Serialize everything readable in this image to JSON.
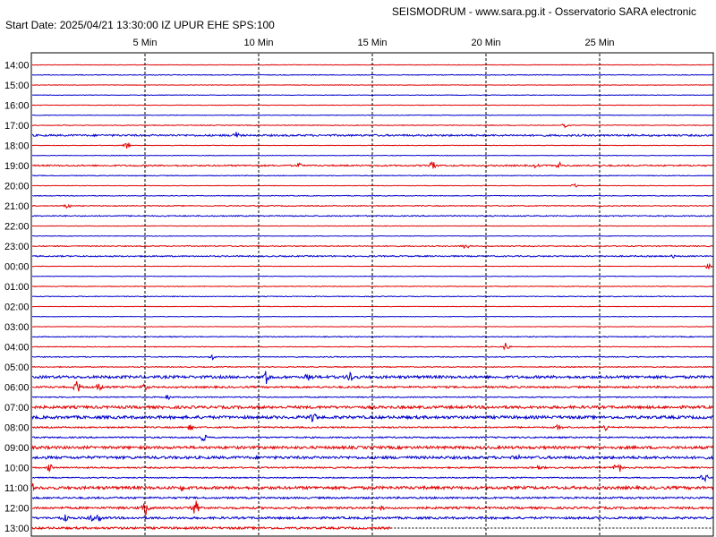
{
  "header": {
    "title": "SEISMODRUM - www.sara.pg.it - Osservatorio SARA electronic",
    "info": "Start Date: 2025/04/21 13:30:00 IZ UPUR   EHE  SPS:100"
  },
  "colors": {
    "trace_a": "#e00000",
    "trace_b": "#0000cc",
    "grid": "#000000",
    "frame": "#000000"
  },
  "chart_data": {
    "type": "line",
    "title": "SEISMODRUM - www.sara.pg.it - Osservatorio SARA electronic",
    "subtitle": "Start Date: 2025/04/21 13:30:00 IZ UPUR   EHE  SPS:100",
    "x_unit": "minutes",
    "xlim": [
      0,
      30
    ],
    "x_ticks": [
      {
        "value": 5,
        "label": "5 Min"
      },
      {
        "value": 10,
        "label": "10 Min"
      },
      {
        "value": 15,
        "label": "15 Min"
      },
      {
        "value": 20,
        "label": "20 Min"
      },
      {
        "value": 25,
        "label": "25 Min"
      }
    ],
    "row_minutes": 30,
    "grid": "dashed vertical",
    "row_labels": [
      "14:00",
      "15:00",
      "16:00",
      "17:00",
      "18:00",
      "19:00",
      "20:00",
      "21:00",
      "22:00",
      "23:00",
      "00:00",
      "01:00",
      "02:00",
      "03:00",
      "04:00",
      "05:00",
      "06:00",
      "07:00",
      "08:00",
      "09:00",
      "10:00",
      "11:00",
      "12:00",
      "13:00"
    ],
    "rows": [
      {
        "label": "14:00",
        "noise_a": 0.3,
        "noise_b": 0.4,
        "events_a": [],
        "events_b": []
      },
      {
        "label": "15:00",
        "noise_a": 0.3,
        "noise_b": 0.3,
        "events_a": [],
        "events_b": []
      },
      {
        "label": "16:00",
        "noise_a": 0.3,
        "noise_b": 0.3,
        "events_a": [],
        "events_b": []
      },
      {
        "label": "17:00",
        "noise_a": 0.4,
        "noise_b": 1.0,
        "events_a": [
          {
            "t": 23.5,
            "amp": 2.5
          }
        ],
        "events_b": [
          {
            "t": 9.0,
            "amp": 3.5
          }
        ]
      },
      {
        "label": "18:00",
        "noise_a": 0.3,
        "noise_b": 0.3,
        "events_a": [
          {
            "t": 4.2,
            "amp": 3
          }
        ],
        "events_b": []
      },
      {
        "label": "19:00",
        "noise_a": 0.8,
        "noise_b": 0.4,
        "events_a": [
          {
            "t": 11.8,
            "amp": 2.5
          },
          {
            "t": 17.7,
            "amp": 5
          },
          {
            "t": 22.2,
            "amp": 2.5
          },
          {
            "t": 23.2,
            "amp": 3
          }
        ],
        "events_b": []
      },
      {
        "label": "20:00",
        "noise_a": 0.3,
        "noise_b": 0.4,
        "events_a": [
          {
            "t": 23.9,
            "amp": 2
          }
        ],
        "events_b": []
      },
      {
        "label": "21:00",
        "noise_a": 0.5,
        "noise_b": 0.6,
        "events_a": [
          {
            "t": 1.6,
            "amp": 2.5
          }
        ],
        "events_b": []
      },
      {
        "label": "22:00",
        "noise_a": 0.3,
        "noise_b": 0.3,
        "events_a": [],
        "events_b": []
      },
      {
        "label": "23:00",
        "noise_a": 0.6,
        "noise_b": 0.7,
        "events_a": [
          {
            "t": 19.1,
            "amp": 3
          }
        ],
        "events_b": [
          {
            "t": 28.3,
            "amp": 2
          }
        ]
      },
      {
        "label": "00:00",
        "noise_a": 0.3,
        "noise_b": 0.3,
        "events_a": [
          {
            "t": 29.8,
            "amp": 3
          }
        ],
        "events_b": []
      },
      {
        "label": "01:00",
        "noise_a": 0.4,
        "noise_b": 0.4,
        "events_a": [],
        "events_b": []
      },
      {
        "label": "02:00",
        "noise_a": 0.3,
        "noise_b": 0.3,
        "events_a": [],
        "events_b": []
      },
      {
        "label": "03:00",
        "noise_a": 0.3,
        "noise_b": 0.5,
        "events_a": [],
        "events_b": []
      },
      {
        "label": "04:00",
        "noise_a": 0.4,
        "noise_b": 0.5,
        "events_a": [
          {
            "t": 20.9,
            "amp": 4
          }
        ],
        "events_b": [
          {
            "t": 8.0,
            "amp": 2.5
          }
        ]
      },
      {
        "label": "05:00",
        "noise_a": 0.5,
        "noise_b": 1.5,
        "events_a": [],
        "events_b": [
          {
            "t": 10.3,
            "amp": 8
          },
          {
            "t": 12.2,
            "amp": 4
          },
          {
            "t": 14.0,
            "amp": 5
          }
        ]
      },
      {
        "label": "06:00",
        "noise_a": 1.0,
        "noise_b": 0.6,
        "events_a": [
          {
            "t": 2.0,
            "amp": 6
          },
          {
            "t": 3.0,
            "amp": 4
          },
          {
            "t": 5.0,
            "amp": 3
          }
        ],
        "events_b": [
          {
            "t": 6.0,
            "amp": 2.5
          }
        ]
      },
      {
        "label": "07:00",
        "noise_a": 1.5,
        "noise_b": 1.6,
        "events_a": [],
        "events_b": [
          {
            "t": 12.4,
            "amp": 5
          }
        ]
      },
      {
        "label": "08:00",
        "noise_a": 0.8,
        "noise_b": 0.8,
        "events_a": [
          {
            "t": 7.0,
            "amp": 2.5
          },
          {
            "t": 23.2,
            "amp": 3
          },
          {
            "t": 25.3,
            "amp": 2.5
          }
        ],
        "events_b": [
          {
            "t": 7.6,
            "amp": 5
          }
        ]
      },
      {
        "label": "09:00",
        "noise_a": 1.5,
        "noise_b": 1.5,
        "events_a": [],
        "events_b": [
          {
            "t": 21.4,
            "amp": 3
          }
        ]
      },
      {
        "label": "10:00",
        "noise_a": 0.8,
        "noise_b": 0.6,
        "events_a": [
          {
            "t": 0.8,
            "amp": 3
          },
          {
            "t": 22.4,
            "amp": 3
          },
          {
            "t": 25.8,
            "amp": 7
          }
        ],
        "events_b": [
          {
            "t": 29.6,
            "amp": 5
          }
        ]
      },
      {
        "label": "11:00",
        "noise_a": 1.6,
        "noise_b": 1.0,
        "events_a": [
          {
            "t": 0.0,
            "amp": 4
          },
          {
            "t": 6.6,
            "amp": 4
          }
        ],
        "events_b": []
      },
      {
        "label": "12:00",
        "noise_a": 1.2,
        "noise_b": 1.2,
        "events_a": [
          {
            "t": 5.0,
            "amp": 7
          },
          {
            "t": 7.2,
            "amp": 8
          },
          {
            "t": 15.4,
            "amp": 2.5
          }
        ],
        "events_b": [
          {
            "t": 1.5,
            "amp": 3
          },
          {
            "t": 2.6,
            "amp": 3
          },
          {
            "t": 3.0,
            "amp": 2.5
          }
        ]
      },
      {
        "label": "13:00",
        "noise_a": 1.2,
        "noise_b": 0,
        "events_a": [],
        "events_b": [],
        "a_end": 15.8
      }
    ]
  }
}
